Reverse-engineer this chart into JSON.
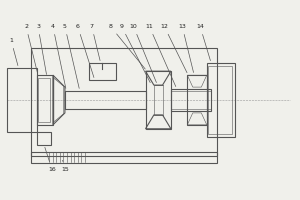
{
  "bg_color": "#f0f0eb",
  "line_color": "#555555",
  "line_width": 0.8,
  "thin_line": 0.4,
  "fig_width": 3.0,
  "fig_height": 2.0
}
